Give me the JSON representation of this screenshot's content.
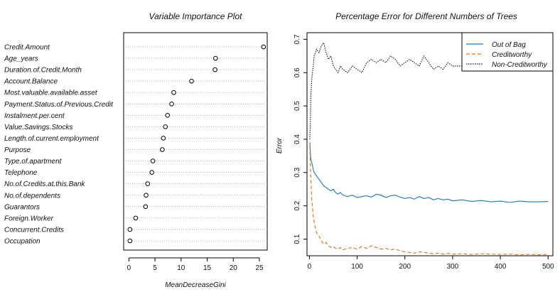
{
  "chart_data": [
    {
      "type": "scatter",
      "title": "Variable Importance Plot",
      "xlabel": "MeanDecreaseGini",
      "ylabel": "",
      "xlim": [
        -1,
        26.5
      ],
      "xticks": [
        "0",
        "5",
        "10",
        "15",
        "20",
        "25"
      ],
      "grid": "dotted horizontal lines per variable",
      "categories": [
        "Credit.Amount",
        "Age_years",
        "Duration.of.Credit.Month",
        "Account.Balance",
        "Most.valuable.available.asset",
        "Payment.Status.of.Previous.Credit",
        "Instalment.per.cent",
        "Value.Savings.Stocks",
        "Length.of.current.employment",
        "Purpose",
        "Type.of.apartment",
        "Telephone",
        "No.of.Credits.at.this.Bank",
        "No.of.dependents",
        "Guarantors",
        "Foreign.Worker",
        "Concurrent.Credits",
        "Occupation"
      ],
      "values": [
        25.8,
        16.6,
        16.5,
        12.0,
        8.6,
        8.2,
        7.4,
        7.0,
        6.6,
        6.4,
        4.6,
        4.4,
        3.6,
        3.3,
        3.2,
        1.3,
        0.2,
        0.2
      ]
    },
    {
      "type": "line",
      "title": "Percentage Error for Different Numbers of Trees",
      "xlabel": "",
      "ylabel": "Error",
      "xlim": [
        -5,
        510
      ],
      "ylim": [
        0.05,
        0.72
      ],
      "xticks": [
        "0",
        "100",
        "200",
        "300",
        "400",
        "500"
      ],
      "yticks": [
        "0.1",
        "0.2",
        "0.3",
        "0.4",
        "0.5",
        "0.6",
        "0.7"
      ],
      "legend_position": "top-right",
      "series": [
        {
          "name": "Out of Bag",
          "color": "#1f77b4",
          "style": "solid",
          "x": [
            1,
            2,
            3,
            5,
            8,
            10,
            15,
            20,
            25,
            30,
            35,
            40,
            45,
            50,
            55,
            60,
            65,
            70,
            80,
            90,
            100,
            110,
            120,
            130,
            140,
            150,
            160,
            170,
            180,
            190,
            200,
            210,
            220,
            230,
            240,
            250,
            260,
            270,
            280,
            290,
            300,
            320,
            340,
            360,
            380,
            400,
            420,
            440,
            460,
            480,
            500
          ],
          "values": [
            0.39,
            0.36,
            0.34,
            0.33,
            0.31,
            0.3,
            0.29,
            0.28,
            0.27,
            0.26,
            0.255,
            0.25,
            0.245,
            0.25,
            0.24,
            0.235,
            0.24,
            0.232,
            0.228,
            0.232,
            0.225,
            0.228,
            0.23,
            0.226,
            0.235,
            0.232,
            0.225,
            0.23,
            0.232,
            0.226,
            0.222,
            0.225,
            0.22,
            0.228,
            0.222,
            0.225,
            0.218,
            0.222,
            0.218,
            0.22,
            0.215,
            0.218,
            0.213,
            0.216,
            0.212,
            0.214,
            0.21,
            0.214,
            0.212,
            0.212,
            0.213
          ]
        },
        {
          "name": "Creditworthy",
          "color": "#e2711d",
          "style": "dashed",
          "x": [
            1,
            2,
            3,
            5,
            8,
            10,
            15,
            20,
            25,
            30,
            35,
            40,
            45,
            50,
            55,
            60,
            65,
            70,
            80,
            90,
            100,
            110,
            120,
            130,
            140,
            150,
            160,
            170,
            180,
            190,
            200,
            210,
            220,
            230,
            240,
            250,
            260,
            270,
            280,
            290,
            300,
            320,
            340,
            360,
            380,
            400,
            420,
            440,
            460,
            480,
            500
          ],
          "values": [
            0.38,
            0.33,
            0.28,
            0.22,
            0.17,
            0.15,
            0.12,
            0.11,
            0.095,
            0.085,
            0.09,
            0.08,
            0.075,
            0.078,
            0.072,
            0.07,
            0.075,
            0.068,
            0.072,
            0.075,
            0.07,
            0.078,
            0.072,
            0.08,
            0.075,
            0.07,
            0.072,
            0.068,
            0.07,
            0.065,
            0.062,
            0.06,
            0.058,
            0.062,
            0.06,
            0.058,
            0.056,
            0.058,
            0.055,
            0.057,
            0.055,
            0.056,
            0.054,
            0.056,
            0.055,
            0.054,
            0.055,
            0.053,
            0.054,
            0.053,
            0.054
          ]
        },
        {
          "name": "Non-Creditworthy",
          "color": "#111111",
          "style": "dotted",
          "x": [
            1,
            2,
            3,
            5,
            8,
            10,
            15,
            20,
            25,
            30,
            35,
            40,
            45,
            50,
            55,
            60,
            65,
            70,
            80,
            90,
            100,
            110,
            120,
            130,
            140,
            150,
            160,
            170,
            180,
            190,
            200,
            210,
            220,
            230,
            240,
            250,
            260,
            270,
            280,
            290,
            300,
            320,
            340,
            360,
            380,
            400,
            420,
            440,
            460,
            480,
            500
          ],
          "values": [
            0.4,
            0.45,
            0.53,
            0.58,
            0.62,
            0.65,
            0.67,
            0.66,
            0.68,
            0.69,
            0.66,
            0.64,
            0.65,
            0.62,
            0.61,
            0.6,
            0.62,
            0.61,
            0.6,
            0.62,
            0.61,
            0.6,
            0.63,
            0.64,
            0.63,
            0.64,
            0.63,
            0.65,
            0.64,
            0.62,
            0.63,
            0.64,
            0.63,
            0.62,
            0.65,
            0.63,
            0.61,
            0.62,
            0.61,
            0.63,
            0.62,
            0.62,
            0.63,
            0.62,
            0.63,
            0.62,
            0.63,
            0.62,
            0.63,
            0.62,
            0.63
          ]
        }
      ]
    }
  ]
}
